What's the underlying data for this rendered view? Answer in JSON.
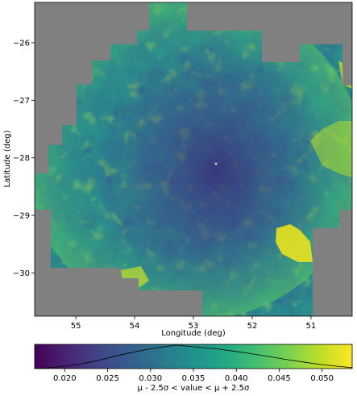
{
  "chart_data": [
    {
      "type": "heatmap",
      "title": "",
      "xlabel": "Longitude (deg)",
      "ylabel": "Latitude (deg)",
      "xlim": [
        55.7,
        50.3
      ],
      "ylim": [
        -30.75,
        -25.3
      ],
      "x_ticks": [
        {
          "value": 55,
          "label": "55"
        },
        {
          "value": 54,
          "label": "54"
        },
        {
          "value": 53,
          "label": "53"
        },
        {
          "value": 52,
          "label": "52"
        },
        {
          "value": 51,
          "label": "51"
        }
      ],
      "y_ticks": [
        {
          "value": -26,
          "label": "−26"
        },
        {
          "value": -27,
          "label": "−27"
        },
        {
          "value": -28,
          "label": "−28"
        },
        {
          "value": -29,
          "label": "−29"
        },
        {
          "value": -30,
          "label": "−30"
        }
      ],
      "background_color": "#808080",
      "colormap": "viridis",
      "value_range": [
        0.0165,
        0.0535
      ],
      "grid": false
    },
    {
      "type": "area",
      "title": "",
      "xlabel": "μ - 2.5σ < value < μ + 2.5σ",
      "colormap": "viridis",
      "xlim": [
        0.0165,
        0.0535
      ],
      "x_ticks": [
        {
          "value": 0.02,
          "label": "0.020"
        },
        {
          "value": 0.025,
          "label": "0.025"
        },
        {
          "value": 0.03,
          "label": "0.030"
        },
        {
          "value": 0.035,
          "label": "0.035"
        },
        {
          "value": 0.04,
          "label": "0.040"
        },
        {
          "value": 0.045,
          "label": "0.045"
        },
        {
          "value": 0.05,
          "label": "0.050"
        }
      ],
      "histogram": {
        "x": [
          0.0165,
          0.018,
          0.02,
          0.022,
          0.024,
          0.026,
          0.028,
          0.03,
          0.031,
          0.032,
          0.033,
          0.034,
          0.035,
          0.036,
          0.038,
          0.04,
          0.042,
          0.044,
          0.046,
          0.048,
          0.05,
          0.052,
          0.0535
        ],
        "y": [
          0.0,
          0.03,
          0.1,
          0.2,
          0.36,
          0.54,
          0.7,
          0.85,
          0.9,
          0.95,
          1.0,
          0.97,
          0.93,
          0.9,
          0.83,
          0.73,
          0.62,
          0.5,
          0.38,
          0.27,
          0.17,
          0.09,
          0.04
        ]
      }
    }
  ]
}
